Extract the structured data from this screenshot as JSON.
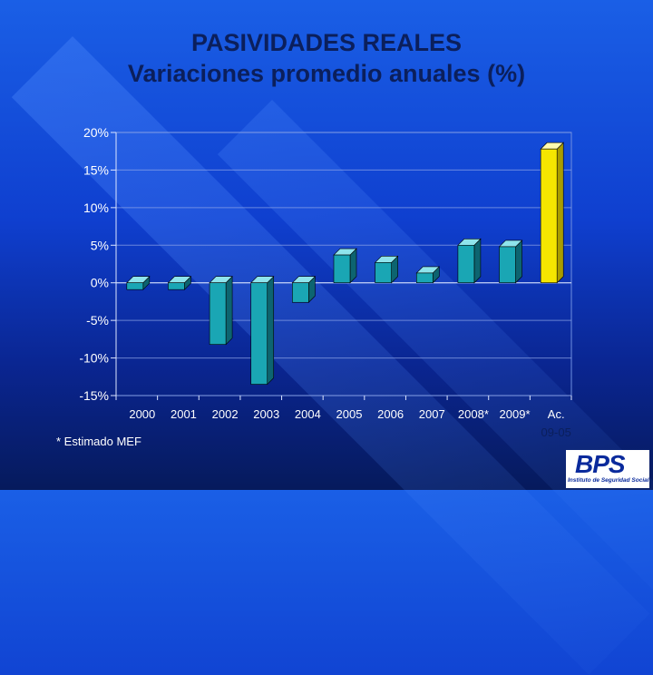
{
  "title": "PASIVIDADES REALES",
  "subtitle": "Variaciones promedio anuales (%)",
  "footnote": "* Estimado MEF",
  "logo": {
    "mark": "BPS",
    "tagline": "Instituto de Seguridad Social"
  },
  "colors": {
    "bar_teal": "#1aa6b4",
    "bar_highlight": "#f5e600",
    "title": "#0b1f5c"
  },
  "chart_data": {
    "type": "bar",
    "categories": [
      "2000",
      "2001",
      "2002",
      "2003",
      "2004",
      "2005",
      "2006",
      "2007",
      "2008*",
      "2009*",
      "Ac. 09-05"
    ],
    "values": [
      -0.9,
      -0.9,
      -8.2,
      -13.5,
      -2.6,
      3.7,
      2.7,
      1.3,
      5.0,
      4.8,
      17.8
    ],
    "ylim": [
      -15,
      20
    ],
    "yticks": [
      "20%",
      "15%",
      "10%",
      "5%",
      "0%",
      "-5%",
      "-10%",
      "-15%"
    ],
    "ytick_values": [
      20,
      15,
      10,
      5,
      0,
      -5,
      -10,
      -15
    ],
    "grid": true
  }
}
